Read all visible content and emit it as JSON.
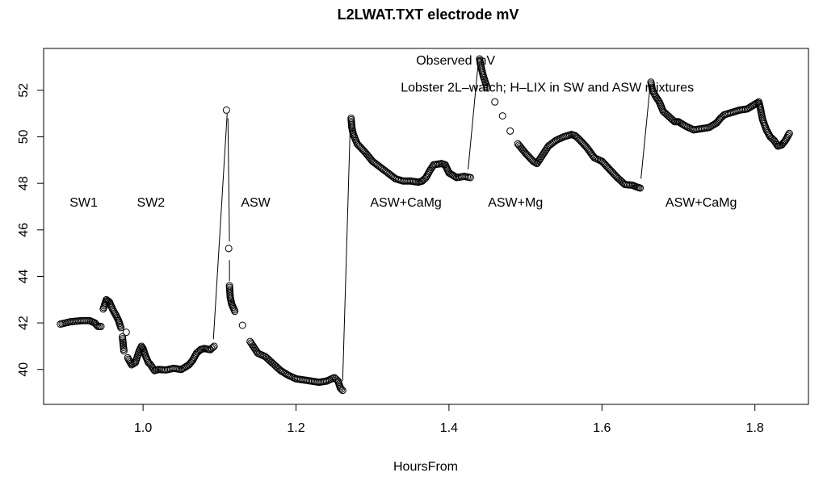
{
  "chart_data": {
    "type": "scatter",
    "title": "L2LWAT.TXT electrode mV",
    "xlabel": "HoursFrom",
    "ylabel": "",
    "xlim": [
      0.87,
      1.87
    ],
    "ylim": [
      38.5,
      53.8
    ],
    "xticks": [
      1.0,
      1.2,
      1.4,
      1.6,
      1.8
    ],
    "xtick_labels": [
      "1.0",
      "1.2",
      "1.4",
      "1.6",
      "1.8"
    ],
    "yticks": [
      40,
      42,
      44,
      46,
      48,
      50,
      52
    ],
    "ytick_labels": [
      "40",
      "42",
      "44",
      "46",
      "48",
      "50",
      "52"
    ],
    "legend": "none",
    "grid": false,
    "annotations": [
      {
        "text": "Observed mV",
        "x": 1.357,
        "y": 53.1
      },
      {
        "text": "Lobster 2L–watch; H–LIX in SW and ASW mixtures",
        "x": 1.337,
        "y": 51.95
      },
      {
        "text": "SW1",
        "x": 0.904,
        "y": 47.0
      },
      {
        "text": "SW2",
        "x": 0.992,
        "y": 47.0
      },
      {
        "text": "ASW",
        "x": 1.128,
        "y": 47.0
      },
      {
        "text": "ASW+CaMg",
        "x": 1.297,
        "y": 47.0
      },
      {
        "text": "ASW+Mg",
        "x": 1.451,
        "y": 47.0
      },
      {
        "text": "ASW+CaMg",
        "x": 1.683,
        "y": 47.0
      }
    ],
    "callouts": [
      {
        "from": [
          1.092,
          41.3
        ],
        "to": [
          1.11,
          51.0
        ]
      },
      {
        "from": [
          1.111,
          50.8
        ],
        "to": [
          1.113,
          45.5
        ]
      },
      {
        "from": [
          1.113,
          44.7
        ],
        "to": [
          1.113,
          43.8
        ]
      },
      {
        "from": [
          1.261,
          39.5
        ],
        "to": [
          1.271,
          50.6
        ]
      },
      {
        "from": [
          1.425,
          48.6
        ],
        "to": [
          1.438,
          53.1
        ]
      },
      {
        "from": [
          1.651,
          48.2
        ],
        "to": [
          1.663,
          52.2
        ]
      }
    ],
    "segments": [
      {
        "name": "SW1",
        "x": [
          0.892,
          0.905,
          0.92,
          0.93,
          0.937,
          0.941,
          0.945,
          0.948,
          0.952,
          0.956,
          0.96,
          0.965,
          0.968,
          0.971
        ],
        "y": [
          41.95,
          42.05,
          42.1,
          42.1,
          42.0,
          41.85,
          41.85,
          42.6,
          43.0,
          42.9,
          42.6,
          42.3,
          42.1,
          41.8
        ]
      },
      {
        "name": "SW2",
        "x": [
          0.973,
          0.975,
          0.978,
          0.98,
          0.985,
          0.99,
          0.995,
          0.998,
          1.0,
          1.003,
          1.007,
          1.01,
          1.015,
          1.02,
          1.03,
          1.04,
          1.05,
          1.06,
          1.065,
          1.07,
          1.075,
          1.08,
          1.088,
          1.093
        ],
        "y": [
          41.4,
          40.8,
          41.6,
          40.5,
          40.2,
          40.3,
          40.8,
          41.0,
          40.9,
          40.6,
          40.3,
          40.2,
          39.95,
          40.0,
          39.98,
          40.05,
          40.0,
          40.2,
          40.4,
          40.7,
          40.85,
          40.9,
          40.85,
          41.0
        ]
      },
      {
        "name": "ASW",
        "x": [
          1.109,
          1.112,
          1.113,
          1.114,
          1.116,
          1.12,
          1.13,
          1.14,
          1.15,
          1.16,
          1.17,
          1.18,
          1.19,
          1.2,
          1.21,
          1.22,
          1.23,
          1.24,
          1.25,
          1.255,
          1.258,
          1.261
        ],
        "y": [
          51.15,
          45.2,
          43.6,
          43.1,
          42.8,
          42.5,
          41.9,
          41.2,
          40.7,
          40.55,
          40.25,
          39.95,
          39.75,
          39.6,
          39.55,
          39.5,
          39.45,
          39.5,
          39.65,
          39.5,
          39.2,
          39.1
        ]
      },
      {
        "name": "ASW+CaMg",
        "x": [
          1.272,
          1.273,
          1.275,
          1.28,
          1.29,
          1.3,
          1.31,
          1.32,
          1.33,
          1.34,
          1.35,
          1.36,
          1.365,
          1.37,
          1.375,
          1.38,
          1.39,
          1.395,
          1.4,
          1.41,
          1.42,
          1.428
        ],
        "y": [
          50.8,
          50.4,
          50.1,
          49.7,
          49.35,
          48.95,
          48.7,
          48.45,
          48.2,
          48.1,
          48.1,
          48.05,
          48.1,
          48.25,
          48.55,
          48.8,
          48.85,
          48.8,
          48.45,
          48.25,
          48.3,
          48.25
        ]
      },
      {
        "name": "ASW+Mg",
        "x": [
          1.44,
          1.442,
          1.445,
          1.45,
          1.46,
          1.47,
          1.48,
          1.49,
          1.5,
          1.51,
          1.515,
          1.52,
          1.53,
          1.54,
          1.55,
          1.56,
          1.565,
          1.57,
          1.58,
          1.59,
          1.6,
          1.61,
          1.62,
          1.63,
          1.64,
          1.645,
          1.65
        ],
        "y": [
          53.35,
          53.0,
          52.6,
          52.1,
          51.5,
          50.9,
          50.25,
          49.7,
          49.3,
          48.95,
          48.85,
          49.1,
          49.6,
          49.85,
          50.0,
          50.1,
          50.05,
          49.9,
          49.55,
          49.1,
          48.95,
          48.6,
          48.25,
          47.95,
          47.92,
          47.85,
          47.8
        ]
      },
      {
        "name": "ASW+CaMg 2",
        "x": [
          1.664,
          1.666,
          1.67,
          1.675,
          1.68,
          1.69,
          1.695,
          1.7,
          1.71,
          1.72,
          1.73,
          1.74,
          1.75,
          1.755,
          1.76,
          1.77,
          1.78,
          1.79,
          1.8,
          1.805,
          1.807,
          1.81,
          1.815,
          1.82,
          1.825,
          1.83,
          1.835,
          1.84,
          1.845
        ],
        "y": [
          52.35,
          52.0,
          51.75,
          51.5,
          51.1,
          50.8,
          50.65,
          50.65,
          50.45,
          50.3,
          50.35,
          50.4,
          50.6,
          50.8,
          50.95,
          51.05,
          51.15,
          51.2,
          51.4,
          51.5,
          51.25,
          50.75,
          50.3,
          50.0,
          49.85,
          49.6,
          49.65,
          49.85,
          50.15
        ]
      }
    ]
  }
}
